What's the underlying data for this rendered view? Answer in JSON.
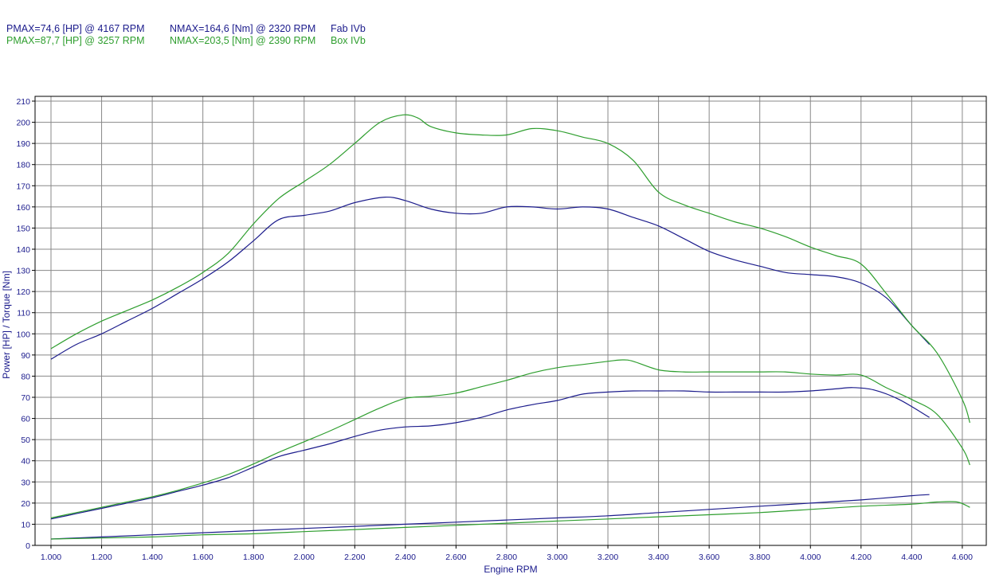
{
  "legend": [
    {
      "pmax": "PMAX=74,6 [HP] @ 4167 RPM",
      "nmax": "NMAX=164,6 [Nm] @ 2320 RPM",
      "name": "Fab IVb",
      "color": "#1c1c8c"
    },
    {
      "pmax": "PMAX=87,7 [HP] @ 3257 RPM",
      "nmax": "NMAX=203,5 [Nm] @ 2390 RPM",
      "name": "Box IVb",
      "color": "#2e9e2e"
    }
  ],
  "chart_data": {
    "type": "line",
    "xlabel": "Engine RPM",
    "ylabel": "Power [HP] / Torque [Nm]",
    "xlim": [
      1000,
      4700
    ],
    "ylim": [
      0,
      210
    ],
    "x_ticks": [
      "1.000",
      "1.200",
      "1.400",
      "1.600",
      "1.800",
      "2.000",
      "2.200",
      "2.400",
      "2.600",
      "2.800",
      "3.000",
      "3.200",
      "3.400",
      "3.600",
      "3.800",
      "4.000",
      "4.200",
      "4.400",
      "4.600"
    ],
    "y_ticks": [
      "0",
      "10",
      "20",
      "30",
      "40",
      "50",
      "60",
      "70",
      "80",
      "90",
      "100",
      "110",
      "120",
      "130",
      "140",
      "150",
      "160",
      "170",
      "180",
      "190",
      "200",
      "210"
    ],
    "grid": true,
    "series": [
      {
        "name": "Fab IVb",
        "quantity": "Torque [Nm]",
        "color": "#1c1c8c",
        "x": [
          1000,
          1100,
          1200,
          1300,
          1400,
          1500,
          1600,
          1700,
          1800,
          1900,
          2000,
          2100,
          2200,
          2320,
          2400,
          2500,
          2600,
          2700,
          2800,
          2900,
          3000,
          3100,
          3200,
          3300,
          3400,
          3500,
          3600,
          3700,
          3800,
          3900,
          4000,
          4100,
          4200,
          4300,
          4400,
          4470
        ],
        "y": [
          88,
          95,
          100,
          106,
          112,
          119,
          126,
          134,
          144,
          154,
          156,
          158,
          162,
          164.6,
          163,
          159,
          157,
          157,
          160,
          160,
          159,
          160,
          159,
          155,
          151,
          145,
          139,
          135,
          132,
          129,
          128,
          127,
          124,
          117,
          104,
          95
        ]
      },
      {
        "name": "Box IVb",
        "quantity": "Torque [Nm]",
        "color": "#2e9e2e",
        "x": [
          1000,
          1100,
          1200,
          1300,
          1400,
          1500,
          1600,
          1700,
          1800,
          1900,
          2000,
          2100,
          2200,
          2300,
          2390,
          2450,
          2500,
          2600,
          2700,
          2800,
          2900,
          3000,
          3100,
          3200,
          3300,
          3400,
          3500,
          3600,
          3700,
          3800,
          3900,
          4000,
          4100,
          4200,
          4300,
          4400,
          4500,
          4600,
          4630
        ],
        "y": [
          93,
          100,
          106,
          111,
          116,
          122,
          129,
          138,
          152,
          164,
          172,
          180,
          190,
          200,
          203.5,
          202,
          198,
          195,
          194,
          194,
          197,
          196,
          193,
          190,
          182,
          167,
          161,
          157,
          153,
          150,
          146,
          141,
          137,
          133,
          119,
          104,
          91,
          69,
          58
        ]
      },
      {
        "name": "Fab IVb",
        "quantity": "Power [HP]",
        "color": "#1c1c8c",
        "x": [
          1000,
          1100,
          1200,
          1300,
          1400,
          1500,
          1600,
          1700,
          1800,
          1900,
          2000,
          2100,
          2200,
          2300,
          2400,
          2500,
          2600,
          2700,
          2800,
          2900,
          3000,
          3100,
          3200,
          3300,
          3400,
          3500,
          3600,
          3700,
          3800,
          3900,
          4000,
          4100,
          4167,
          4250,
          4350,
          4470
        ],
        "y": [
          12.5,
          15,
          17.5,
          20,
          22.5,
          25.5,
          28.5,
          32,
          37,
          42,
          45,
          48,
          51.5,
          54.5,
          56,
          56.5,
          58,
          60.5,
          64,
          66.5,
          68.5,
          71.5,
          72.5,
          73,
          73,
          73,
          72.5,
          72.5,
          72.5,
          72.5,
          73,
          74,
          74.6,
          73.5,
          69,
          60.5
        ]
      },
      {
        "name": "Box IVb",
        "quantity": "Power [HP]",
        "color": "#2e9e2e",
        "x": [
          1000,
          1100,
          1200,
          1300,
          1400,
          1500,
          1600,
          1700,
          1800,
          1900,
          2000,
          2100,
          2200,
          2300,
          2400,
          2500,
          2600,
          2700,
          2800,
          2900,
          3000,
          3100,
          3200,
          3257,
          3300,
          3400,
          3500,
          3600,
          3700,
          3800,
          3900,
          4000,
          4100,
          4200,
          4300,
          4400,
          4500,
          4600,
          4630
        ],
        "y": [
          13,
          15.5,
          18,
          20.5,
          23,
          26,
          29.5,
          33.5,
          38.5,
          44,
          49,
          54,
          59.5,
          65,
          69.5,
          70.5,
          72,
          75,
          78,
          81.5,
          84,
          85.5,
          87,
          87.7,
          87,
          83,
          82,
          82,
          82,
          82,
          82,
          81,
          80.5,
          80.5,
          74.5,
          69,
          62,
          46,
          38
        ]
      },
      {
        "name": "Fab IVb",
        "quantity": "Loss [HP]",
        "color": "#1c1c8c",
        "x": [
          1000,
          1200,
          1400,
          1600,
          1800,
          2000,
          2200,
          2400,
          2600,
          2800,
          3000,
          3200,
          3400,
          3600,
          3800,
          4000,
          4200,
          4400,
          4470
        ],
        "y": [
          3,
          4,
          5,
          6,
          7,
          8,
          9,
          10,
          11,
          12,
          13,
          14,
          15.5,
          17,
          18.5,
          20,
          21.5,
          23.5,
          24
        ]
      },
      {
        "name": "Box IVb",
        "quantity": "Loss [HP]",
        "color": "#2e9e2e",
        "x": [
          1000,
          1200,
          1400,
          1600,
          1800,
          2000,
          2200,
          2400,
          2600,
          2800,
          3000,
          3200,
          3400,
          3600,
          3800,
          4000,
          4200,
          4400,
          4500,
          4580,
          4630
        ],
        "y": [
          3,
          3.5,
          4,
          5,
          5.5,
          6.5,
          7.5,
          8.5,
          9.5,
          10.5,
          11.5,
          12.5,
          13.5,
          14.5,
          15.5,
          17,
          18.5,
          19.5,
          20.5,
          20.5,
          18
        ]
      }
    ]
  }
}
